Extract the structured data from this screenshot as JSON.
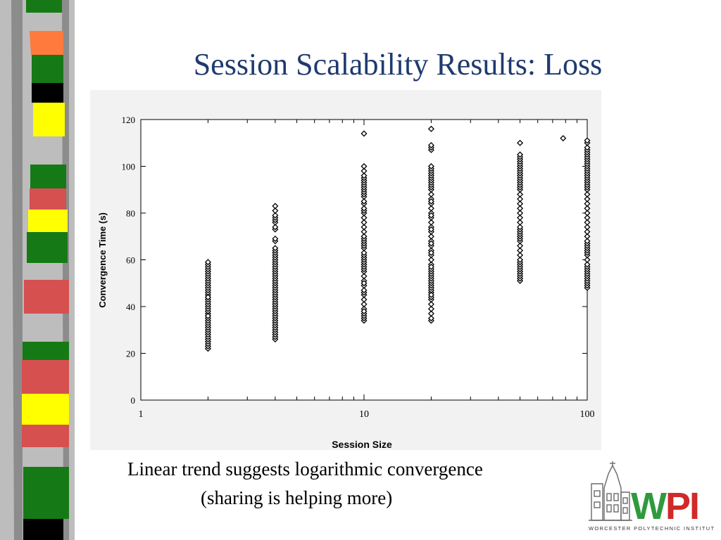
{
  "slide": {
    "title": "Session Scalability Results: Loss",
    "caption_line1": "Linear trend suggests logarithmic convergence",
    "caption_line2": "(sharing is helping more)"
  },
  "logo": {
    "wordmark": "WPI",
    "tagline": "WORCESTER POLYTECHNIC INSTITUTE",
    "colors": {
      "green": "#2e9a3c",
      "red": "#d02a2a"
    }
  },
  "decor": {
    "stripe_colors": [
      "#157a15",
      "#ff7a3c",
      "#000000",
      "#ffff00",
      "#d65050",
      "#8c8c8c",
      "#bdbdbd"
    ]
  },
  "chart_data": {
    "type": "scatter",
    "title": "",
    "xlabel": "Session Size",
    "ylabel": "Convergence Time (s)",
    "x_scale": "log",
    "xlim": [
      1,
      100
    ],
    "ylim": [
      0,
      120
    ],
    "x_ticks": [
      1,
      10,
      100
    ],
    "x_tick_labels": [
      "1",
      "10",
      "100"
    ],
    "y_ticks": [
      0,
      20,
      40,
      60,
      80,
      100,
      120
    ],
    "y_tick_labels": [
      "0",
      "20",
      "40",
      "60",
      "80",
      "100",
      "120"
    ],
    "grid": false,
    "legend": "none",
    "marker": "diamond",
    "series": [
      {
        "x": [
          2,
          2,
          2,
          2,
          2,
          2,
          2,
          2,
          2,
          2,
          2,
          2,
          2,
          2,
          2,
          2,
          2,
          2,
          2,
          2,
          2,
          2,
          2,
          2,
          2,
          2,
          2,
          2,
          2,
          2,
          2,
          2,
          2,
          2,
          2,
          2,
          2,
          2,
          2,
          2,
          4,
          4,
          4,
          4,
          4,
          4,
          4,
          4,
          4,
          4,
          4,
          4,
          4,
          4,
          4,
          4,
          4,
          4,
          4,
          4,
          4,
          4,
          4,
          4,
          4,
          4,
          4,
          4,
          4,
          4,
          4,
          4,
          4,
          4,
          4,
          4,
          4,
          4,
          4,
          4,
          4,
          4,
          4,
          4,
          4,
          4,
          4,
          4,
          4,
          4,
          10,
          10,
          10,
          10,
          10,
          10,
          10,
          10,
          10,
          10,
          10,
          10,
          10,
          10,
          10,
          10,
          10,
          10,
          10,
          10,
          10,
          10,
          10,
          10,
          10,
          10,
          10,
          10,
          10,
          10,
          10,
          10,
          10,
          10,
          10,
          10,
          10,
          10,
          10,
          10,
          10,
          10,
          10,
          10,
          10,
          10,
          10,
          10,
          10,
          10,
          10,
          10,
          20,
          20,
          20,
          20,
          20,
          20,
          20,
          20,
          20,
          20,
          20,
          20,
          20,
          20,
          20,
          20,
          20,
          20,
          20,
          20,
          20,
          20,
          20,
          20,
          20,
          20,
          20,
          20,
          20,
          20,
          20,
          20,
          20,
          20,
          20,
          20,
          20,
          20,
          20,
          20,
          20,
          20,
          20,
          20,
          20,
          20,
          20,
          20,
          20,
          20,
          20,
          20,
          20,
          20,
          20,
          20,
          50,
          50,
          50,
          50,
          50,
          50,
          50,
          50,
          50,
          50,
          50,
          50,
          50,
          50,
          50,
          50,
          50,
          50,
          50,
          50,
          50,
          50,
          50,
          50,
          50,
          50,
          50,
          50,
          50,
          50,
          50,
          50,
          50,
          50,
          50,
          50,
          50,
          50,
          50,
          50,
          50,
          50,
          50,
          50,
          78,
          100,
          100,
          100,
          100,
          100,
          100,
          100,
          100,
          100,
          100,
          100,
          100,
          100,
          100,
          100,
          100,
          100,
          100,
          100,
          100,
          100,
          100,
          100,
          100,
          100,
          100,
          100,
          100,
          100,
          100,
          100,
          100,
          100,
          100,
          100,
          100,
          100,
          100,
          100,
          100,
          100,
          100,
          100,
          100,
          100,
          100,
          100,
          100,
          100,
          100
        ],
        "y": [
          22,
          23,
          24,
          25,
          26,
          27,
          28,
          29,
          30,
          31,
          32,
          33,
          34,
          35,
          36,
          37,
          38,
          39,
          40,
          41,
          42,
          43,
          44,
          45,
          46,
          47,
          48,
          49,
          50,
          51,
          52,
          53,
          54,
          55,
          56,
          57,
          58,
          59,
          36,
          44,
          26,
          27,
          28,
          29,
          30,
          31,
          32,
          33,
          34,
          35,
          36,
          37,
          38,
          39,
          40,
          41,
          42,
          43,
          44,
          45,
          46,
          47,
          48,
          49,
          50,
          51,
          52,
          53,
          54,
          55,
          56,
          57,
          58,
          59,
          60,
          61,
          62,
          63,
          64,
          65,
          68,
          69,
          73,
          74,
          76,
          77,
          78,
          79,
          81,
          83,
          34,
          35,
          36,
          37,
          39,
          41,
          43,
          45,
          46,
          47,
          49,
          51,
          53,
          55,
          56,
          57,
          58,
          59,
          60,
          61,
          62,
          63,
          65,
          66,
          67,
          68,
          69,
          70,
          72,
          74,
          76,
          78,
          80,
          81,
          82,
          84,
          85,
          87,
          88,
          89,
          90,
          91,
          92,
          93,
          94,
          95,
          96,
          98,
          100,
          114,
          38,
          50,
          34,
          35,
          37,
          39,
          41,
          43,
          44,
          46,
          47,
          48,
          49,
          50,
          51,
          52,
          53,
          54,
          55,
          56,
          58,
          60,
          62,
          64,
          66,
          68,
          70,
          72,
          74,
          76,
          78,
          80,
          82,
          84,
          86,
          88,
          90,
          91,
          92,
          93,
          94,
          95,
          96,
          97,
          98,
          99,
          100,
          107,
          108,
          109,
          116,
          45,
          57,
          63,
          67,
          73,
          79,
          85,
          51,
          52,
          53,
          54,
          55,
          56,
          57,
          58,
          59,
          60,
          62,
          64,
          66,
          68,
          69,
          70,
          71,
          72,
          73,
          74,
          76,
          78,
          80,
          82,
          84,
          86,
          88,
          90,
          91,
          92,
          93,
          94,
          95,
          96,
          97,
          98,
          99,
          100,
          101,
          102,
          103,
          104,
          105,
          110,
          112,
          48,
          49,
          50,
          51,
          52,
          53,
          54,
          55,
          56,
          57,
          58,
          60,
          62,
          63,
          64,
          65,
          66,
          67,
          68,
          70,
          72,
          74,
          76,
          78,
          80,
          82,
          84,
          86,
          88,
          90,
          91,
          92,
          93,
          94,
          95,
          96,
          97,
          98,
          99,
          100,
          101,
          102,
          103,
          104,
          105,
          106,
          107,
          108,
          110,
          111
        ]
      }
    ]
  }
}
